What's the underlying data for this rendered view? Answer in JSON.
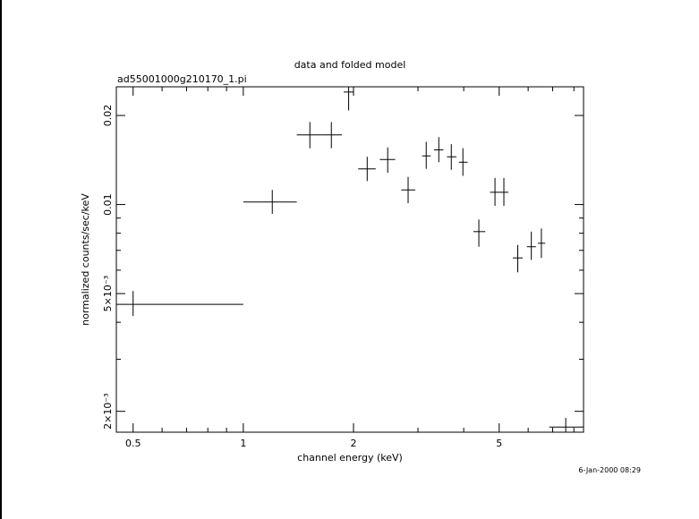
{
  "chart_data": {
    "type": "scatter",
    "title": "data and folded model",
    "subtitle": "ad55001000g210170_1.pi",
    "xlabel": "channel energy (keV)",
    "ylabel": "normalized counts/sec/keV",
    "timestamp": "6-Jan-2000 08:29",
    "xscale": "log",
    "yscale": "log",
    "xlim": [
      0.45,
      8.5
    ],
    "ylim": [
      0.0017,
      0.025
    ],
    "x_tick_labels": [
      {
        "value": 0.5,
        "label": "0.5"
      },
      {
        "value": 1,
        "label": "1"
      },
      {
        "value": 2,
        "label": "2"
      },
      {
        "value": 5,
        "label": "5"
      }
    ],
    "y_tick_labels": [
      {
        "value": 0.002,
        "label": "2×10⁻³"
      },
      {
        "value": 0.005,
        "label": "5×10⁻³"
      },
      {
        "value": 0.01,
        "label": "0.01"
      },
      {
        "value": 0.02,
        "label": "0.02"
      }
    ],
    "series": [
      {
        "points": [
          {
            "x": 0.5,
            "x_lo": 0.45,
            "x_hi": 1.0,
            "y": 0.0046,
            "y_lo": 0.0042,
            "y_hi": 0.0051
          },
          {
            "x": 1.2,
            "x_lo": 1.0,
            "x_hi": 1.4,
            "y": 0.0102,
            "y_lo": 0.0093,
            "y_hi": 0.0112
          },
          {
            "x": 1.52,
            "x_lo": 1.4,
            "x_hi": 1.64,
            "y": 0.0172,
            "y_lo": 0.0155,
            "y_hi": 0.019
          },
          {
            "x": 1.74,
            "x_lo": 1.64,
            "x_hi": 1.86,
            "y": 0.0172,
            "y_lo": 0.0155,
            "y_hi": 0.019
          },
          {
            "x": 1.94,
            "x_lo": 1.88,
            "x_hi": 2.0,
            "y": 0.024,
            "y_lo": 0.0208,
            "y_hi": 0.026
          },
          {
            "x": 2.18,
            "x_lo": 2.06,
            "x_hi": 2.3,
            "y": 0.0132,
            "y_lo": 0.012,
            "y_hi": 0.0145
          },
          {
            "x": 2.48,
            "x_lo": 2.36,
            "x_hi": 2.6,
            "y": 0.0142,
            "y_lo": 0.0128,
            "y_hi": 0.0156
          },
          {
            "x": 2.82,
            "x_lo": 2.7,
            "x_hi": 2.95,
            "y": 0.0112,
            "y_lo": 0.0101,
            "y_hi": 0.0124
          },
          {
            "x": 3.16,
            "x_lo": 3.08,
            "x_hi": 3.25,
            "y": 0.0146,
            "y_lo": 0.0132,
            "y_hi": 0.0163
          },
          {
            "x": 3.42,
            "x_lo": 3.32,
            "x_hi": 3.52,
            "y": 0.0153,
            "y_lo": 0.0139,
            "y_hi": 0.0169
          },
          {
            "x": 3.7,
            "x_lo": 3.6,
            "x_hi": 3.82,
            "y": 0.0145,
            "y_lo": 0.0131,
            "y_hi": 0.016
          },
          {
            "x": 3.98,
            "x_lo": 3.88,
            "x_hi": 4.1,
            "y": 0.0139,
            "y_lo": 0.0125,
            "y_hi": 0.0155
          },
          {
            "x": 4.4,
            "x_lo": 4.25,
            "x_hi": 4.58,
            "y": 0.0081,
            "y_lo": 0.0072,
            "y_hi": 0.0089
          },
          {
            "x": 4.87,
            "x_lo": 4.72,
            "x_hi": 5.02,
            "y": 0.011,
            "y_lo": 0.0099,
            "y_hi": 0.0123
          },
          {
            "x": 5.15,
            "x_lo": 5.02,
            "x_hi": 5.3,
            "y": 0.011,
            "y_lo": 0.0099,
            "y_hi": 0.0123
          },
          {
            "x": 5.62,
            "x_lo": 5.45,
            "x_hi": 5.8,
            "y": 0.0066,
            "y_lo": 0.0059,
            "y_hi": 0.0073
          },
          {
            "x": 6.12,
            "x_lo": 5.95,
            "x_hi": 6.3,
            "y": 0.0072,
            "y_lo": 0.0065,
            "y_hi": 0.0081
          },
          {
            "x": 6.52,
            "x_lo": 6.38,
            "x_hi": 6.68,
            "y": 0.0074,
            "y_lo": 0.0066,
            "y_hi": 0.0083
          },
          {
            "x": 7.6,
            "x_lo": 6.85,
            "x_hi": 8.5,
            "y": 0.00177,
            "y_lo": 0.00165,
            "y_hi": 0.0019
          }
        ]
      }
    ]
  }
}
